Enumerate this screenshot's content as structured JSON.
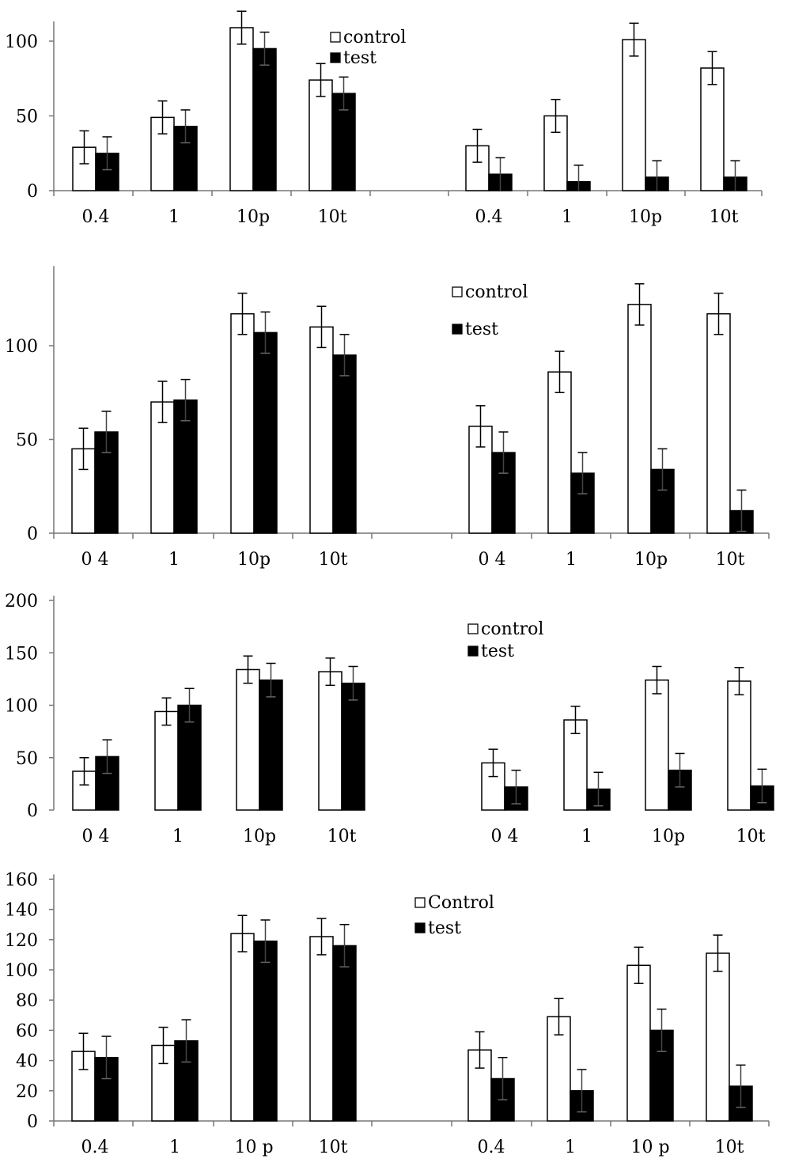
{
  "chart_data": [
    {
      "type": "bar",
      "yticks": [
        "0",
        "50",
        "100"
      ],
      "ylim": [
        0,
        110
      ],
      "grid": false,
      "legend": {
        "entries": [
          "control",
          "test"
        ],
        "placement": "top-center"
      },
      "groups": [
        {
          "categories": [
            "0.4",
            "1",
            "10p",
            "10t"
          ],
          "series": [
            {
              "name": "control",
              "values": [
                29,
                49,
                109,
                74
              ],
              "errors": [
                11,
                11,
                11,
                11
              ]
            },
            {
              "name": "test",
              "values": [
                25,
                43,
                95,
                65
              ],
              "errors": [
                11,
                11,
                11,
                11
              ]
            }
          ]
        },
        {
          "categories": [
            "0.4",
            "1",
            "10p",
            "10t"
          ],
          "series": [
            {
              "name": "control",
              "values": [
                30,
                50,
                101,
                82
              ],
              "errors": [
                11,
                11,
                11,
                11
              ]
            },
            {
              "name": "test",
              "values": [
                11,
                6,
                9,
                9
              ],
              "errors": [
                11,
                11,
                11,
                11
              ]
            }
          ]
        }
      ]
    },
    {
      "type": "bar",
      "yticks": [
        "0",
        "50",
        "100"
      ],
      "ylim": [
        0,
        140
      ],
      "grid": false,
      "legend": {
        "entries": [
          "control",
          "test"
        ],
        "placement": "top-center"
      },
      "groups": [
        {
          "categories": [
            "0 4",
            "1",
            "10p",
            "10t"
          ],
          "series": [
            {
              "name": "control",
              "values": [
                45,
                70,
                117,
                110
              ],
              "errors": [
                11,
                11,
                11,
                11
              ]
            },
            {
              "name": "test",
              "values": [
                54,
                71,
                107,
                95
              ],
              "errors": [
                11,
                11,
                11,
                11
              ]
            }
          ]
        },
        {
          "categories": [
            "0 4",
            "1",
            "10p",
            "10t"
          ],
          "series": [
            {
              "name": "control",
              "values": [
                57,
                86,
                122,
                117
              ],
              "errors": [
                11,
                11,
                11,
                11
              ]
            },
            {
              "name": "test",
              "values": [
                43,
                32,
                34,
                12
              ],
              "errors": [
                11,
                11,
                11,
                11
              ]
            }
          ]
        }
      ]
    },
    {
      "type": "bar",
      "yticks": [
        "0",
        "50",
        "100",
        "150",
        "200"
      ],
      "ylim": [
        0,
        200
      ],
      "grid": false,
      "legend": {
        "entries": [
          "control",
          "test"
        ],
        "placement": "top-center"
      },
      "groups": [
        {
          "categories": [
            "0 4",
            "1",
            "10p",
            "10t"
          ],
          "series": [
            {
              "name": "control",
              "values": [
                37,
                94,
                134,
                132
              ],
              "errors": [
                13,
                13,
                13,
                13
              ]
            },
            {
              "name": "test",
              "values": [
                51,
                100,
                124,
                121
              ],
              "errors": [
                16,
                16,
                16,
                16
              ]
            }
          ]
        },
        {
          "categories": [
            "0 4",
            "1",
            "10p",
            "10t"
          ],
          "series": [
            {
              "name": "control",
              "values": [
                45,
                86,
                124,
                123
              ],
              "errors": [
                13,
                13,
                13,
                13
              ]
            },
            {
              "name": "test",
              "values": [
                22,
                20,
                38,
                23
              ],
              "errors": [
                16,
                16,
                16,
                16
              ]
            }
          ]
        }
      ]
    },
    {
      "type": "bar",
      "yticks": [
        "0",
        "20",
        "40",
        "60",
        "80",
        "100",
        "120",
        "140",
        "160"
      ],
      "ylim": [
        0,
        160
      ],
      "grid": false,
      "legend": {
        "entries": [
          "Control",
          "test"
        ],
        "placement": "top-center"
      },
      "groups": [
        {
          "categories": [
            "0.4",
            "1",
            "10 p",
            "10t"
          ],
          "series": [
            {
              "name": "Control",
              "values": [
                46,
                50,
                124,
                122
              ],
              "errors": [
                12,
                12,
                12,
                12
              ]
            },
            {
              "name": "test",
              "values": [
                42,
                53,
                119,
                116
              ],
              "errors": [
                14,
                14,
                14,
                14
              ]
            }
          ]
        },
        {
          "categories": [
            "0.4",
            "1",
            "10 p",
            "10t"
          ],
          "series": [
            {
              "name": "Control",
              "values": [
                47,
                69,
                103,
                111
              ],
              "errors": [
                12,
                12,
                12,
                12
              ]
            },
            {
              "name": "test",
              "values": [
                28,
                20,
                60,
                23
              ],
              "errors": [
                14,
                14,
                14,
                14
              ]
            }
          ]
        }
      ]
    }
  ]
}
